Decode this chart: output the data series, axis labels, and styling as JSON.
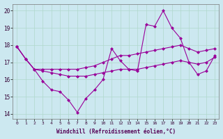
{
  "background_color": "#cce8f0",
  "grid_color": "#b0d8cc",
  "line_color": "#990099",
  "hours": [
    0,
    1,
    2,
    3,
    4,
    5,
    6,
    7,
    8,
    9,
    10,
    11,
    12,
    13,
    14,
    15,
    16,
    17,
    18,
    19,
    20,
    21,
    22,
    23
  ],
  "series_main": [
    17.9,
    17.2,
    16.6,
    15.9,
    15.4,
    15.3,
    14.8,
    14.1,
    14.9,
    15.4,
    16.0,
    17.8,
    17.1,
    16.6,
    16.5,
    19.2,
    19.1,
    20.0,
    19.0,
    18.4,
    17.0,
    16.3,
    16.5,
    17.4
  ],
  "series_upper": [
    17.9,
    17.2,
    16.6,
    16.6,
    16.6,
    16.6,
    16.6,
    16.6,
    16.7,
    16.8,
    17.0,
    17.2,
    17.4,
    17.4,
    17.5,
    17.6,
    17.7,
    17.8,
    17.9,
    18.0,
    17.8,
    17.6,
    17.7,
    17.8
  ],
  "series_lower": [
    17.9,
    17.2,
    16.6,
    16.5,
    16.4,
    16.3,
    16.2,
    16.2,
    16.2,
    16.3,
    16.4,
    16.5,
    16.6,
    16.6,
    16.6,
    16.7,
    16.8,
    16.9,
    17.0,
    17.1,
    17.0,
    16.9,
    17.0,
    17.3
  ],
  "xlabel": "Windchill (Refroidissement éolien,°C)",
  "ylim": [
    13.7,
    20.4
  ],
  "yticks": [
    14,
    15,
    16,
    17,
    18,
    19,
    20
  ],
  "marker": "D",
  "markersize": 2.5,
  "linewidth": 0.8
}
